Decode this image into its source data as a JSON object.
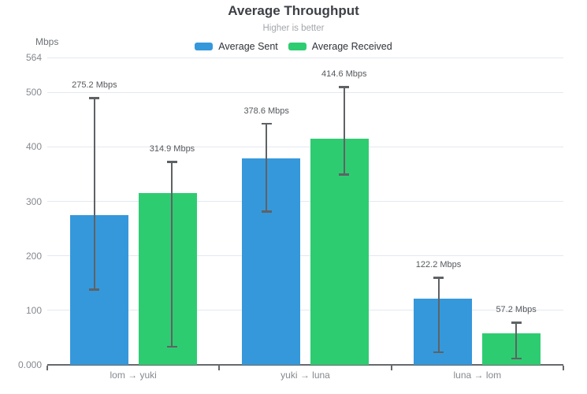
{
  "chart_data": {
    "type": "bar",
    "title": "Average Throughput",
    "subtitle": "Higher is better",
    "unit_label": "Mbps",
    "categories": [
      "lom → yuki",
      "yuki → luna",
      "luna → lom"
    ],
    "series": [
      {
        "name": "Average Sent",
        "color": "#3598db",
        "values": [
          275.2,
          378.6,
          122.2
        ],
        "bar_labels": [
          "275.2 Mbps",
          "378.6 Mbps",
          "122.2 Mbps"
        ],
        "error_low": [
          138,
          281,
          23
        ],
        "error_high": [
          490,
          443,
          160
        ]
      },
      {
        "name": "Average Received",
        "color": "#2ecc71",
        "values": [
          314.9,
          414.6,
          57.2
        ],
        "bar_labels": [
          "314.9 Mbps",
          "414.6 Mbps",
          "57.2 Mbps"
        ],
        "error_low": [
          33,
          349,
          11
        ],
        "error_high": [
          373,
          510,
          78
        ]
      }
    ],
    "y_ticks": [
      "0.000",
      "100",
      "200",
      "300",
      "400",
      "500",
      "564"
    ],
    "y_tick_values": [
      0,
      100,
      200,
      300,
      400,
      500,
      564
    ],
    "ylim": [
      0,
      564
    ],
    "grid": true,
    "legend_position": "top",
    "error_bar_color": "#5f6265",
    "gridline_color": "#e3e8f1",
    "axis_color": "#66696d"
  }
}
